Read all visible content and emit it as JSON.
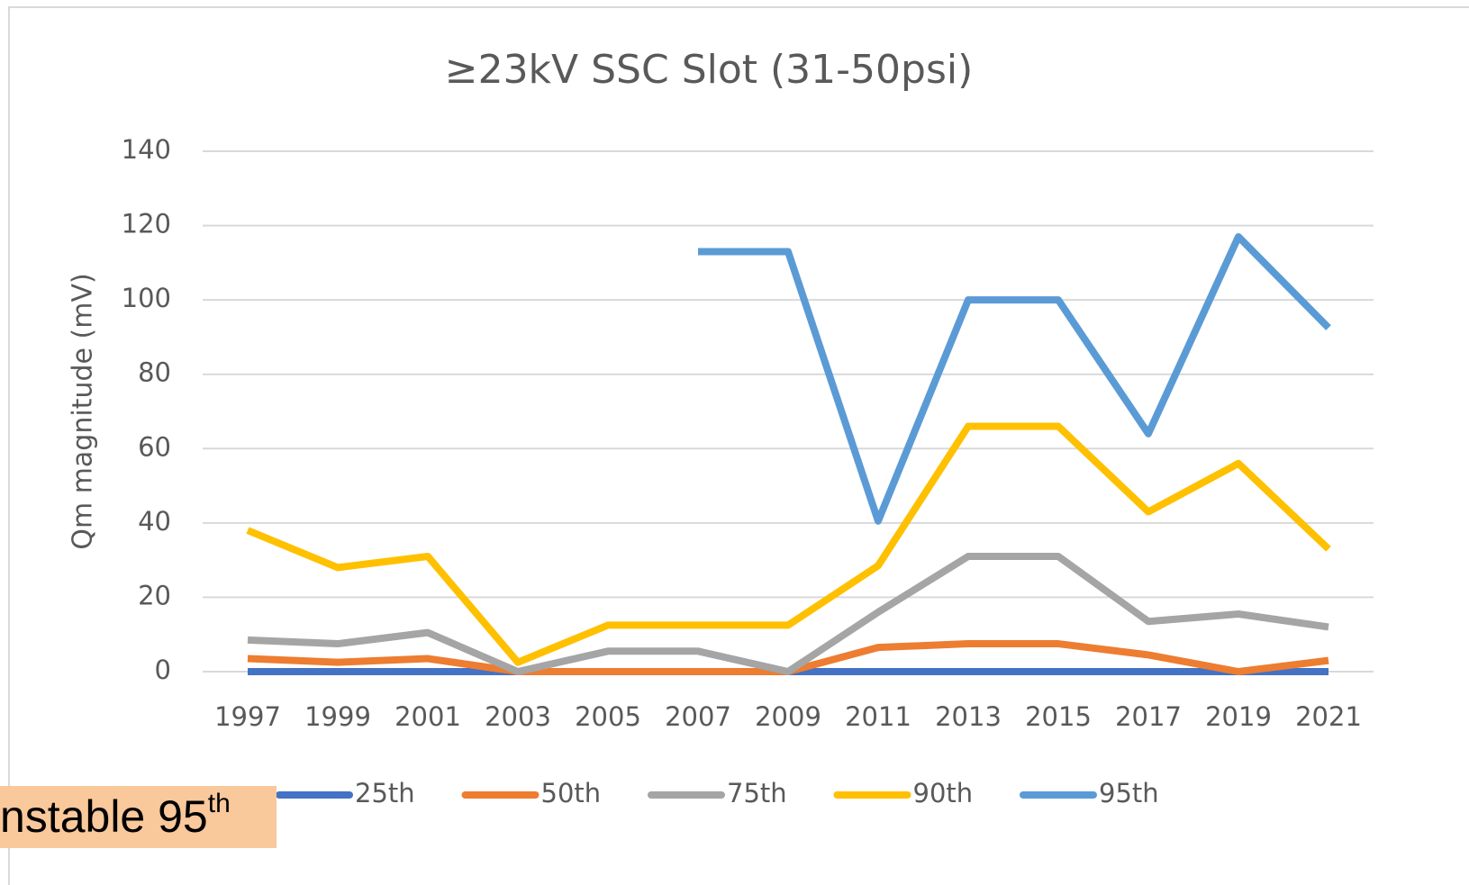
{
  "chart_data": {
    "type": "line",
    "title": "≥23kV SSC Slot (31-50psi)",
    "y_label": "Qm magnitude (mV)",
    "categories": [
      "1997",
      "1999",
      "2001",
      "2003",
      "2005",
      "2007",
      "2009",
      "2011",
      "2013",
      "2015",
      "2017",
      "2019",
      "2021"
    ],
    "series": [
      {
        "name": "25th",
        "color": "#4472c4",
        "values": [
          0,
          0,
          0,
          0,
          0,
          0,
          0,
          0,
          0,
          0,
          0,
          0,
          0
        ]
      },
      {
        "name": "50th",
        "color": "#ed7d31",
        "values": [
          3.5,
          2.5,
          3.5,
          0,
          0,
          0,
          0,
          6.5,
          7.5,
          7.5,
          4.5,
          0,
          3
        ]
      },
      {
        "name": "75th",
        "color": "#a5a5a5",
        "values": [
          8.5,
          7.5,
          10.5,
          0,
          5.5,
          5.5,
          0,
          16,
          31,
          31,
          13.5,
          15.5,
          12
        ]
      },
      {
        "name": "90th",
        "color": "#ffc000",
        "values": [
          38,
          28,
          31,
          2.5,
          12.5,
          12.5,
          12.5,
          28.5,
          66,
          66,
          43,
          56,
          33
        ]
      },
      {
        "name": "95th",
        "color": "#5b9bd5",
        "values": [
          null,
          null,
          null,
          null,
          null,
          113,
          113,
          40.5,
          100,
          100,
          64,
          117,
          92.5
        ]
      }
    ],
    "ylim": [
      0,
      140
    ],
    "yticks": [
      0,
      20,
      40,
      60,
      80,
      100,
      120,
      140
    ],
    "grid": true,
    "legend": "bottom",
    "annotation": {
      "text": "nstable 95",
      "superscript": "th"
    }
  }
}
